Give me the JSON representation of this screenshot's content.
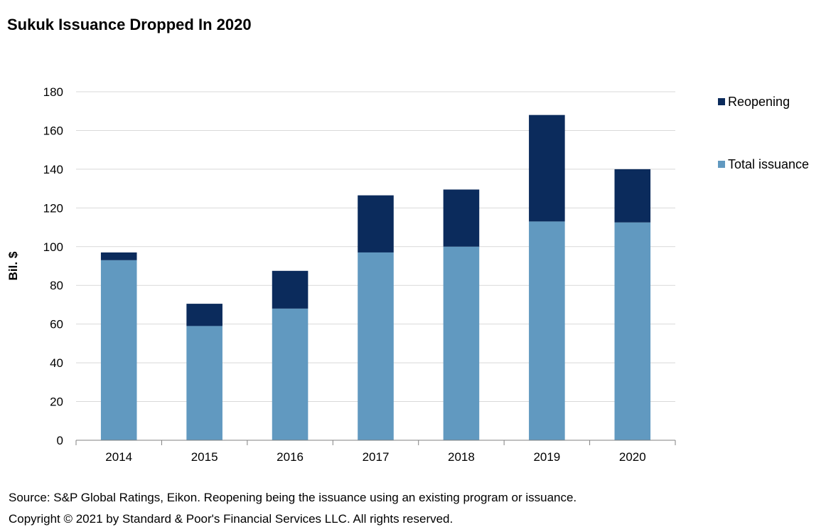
{
  "title": "Sukuk Issuance Dropped In 2020",
  "footnotes": {
    "source": "Source: S&P Global Ratings, Eikon. Reopening being the issuance using an existing program or issuance.",
    "copyright": "Copyright © 2021 by Standard & Poor's Financial Services LLC. All rights reserved."
  },
  "chart_data": {
    "type": "bar",
    "stacked": true,
    "title": "Sukuk Issuance Dropped In 2020",
    "xlabel": "",
    "ylabel": "Bil. $",
    "ylim": [
      0,
      180
    ],
    "yticks": [
      0,
      20,
      40,
      60,
      80,
      100,
      120,
      140,
      160,
      180
    ],
    "grid": true,
    "legend_position": "right",
    "categories": [
      "2014",
      "2015",
      "2016",
      "2017",
      "2018",
      "2019",
      "2020"
    ],
    "series": [
      {
        "name": "Total issuance",
        "color": "#6199c0",
        "values": [
          93,
          59,
          68,
          97,
          100,
          113,
          112.5
        ]
      },
      {
        "name": "Reopening",
        "color": "#0b2b5c",
        "values": [
          4,
          11.5,
          19.5,
          29.5,
          29.5,
          55,
          27.5
        ]
      }
    ],
    "legend_order": [
      "Reopening",
      "Total issuance"
    ]
  }
}
